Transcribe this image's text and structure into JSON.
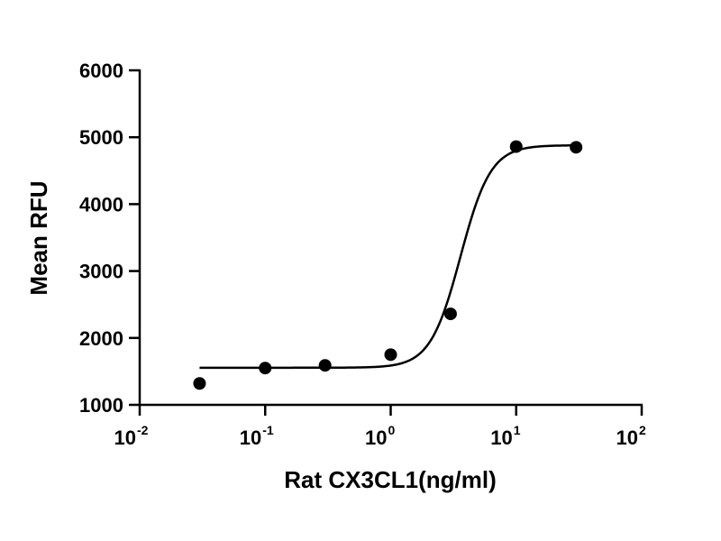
{
  "chart_data": {
    "type": "scatter",
    "xscale": "log",
    "xlabel": "Rat CX3CL1(ng/ml)",
    "ylabel": "Mean RFU",
    "xlim": [
      0.01,
      100
    ],
    "ylim": [
      1000,
      6000
    ],
    "x_ticks": [
      {
        "base": "10",
        "exp": "-2"
      },
      {
        "base": "10",
        "exp": "-1"
      },
      {
        "base": "10",
        "exp": "0"
      },
      {
        "base": "10",
        "exp": "1"
      },
      {
        "base": "10",
        "exp": "2"
      }
    ],
    "y_ticks": [
      "1000",
      "2000",
      "3000",
      "4000",
      "5000",
      "6000"
    ],
    "grid": false,
    "series": [
      {
        "x": [
          0.03,
          0.1,
          0.3,
          1,
          3,
          10,
          30
        ],
        "y": [
          1320,
          1550,
          1590,
          1750,
          2360,
          4860,
          4850
        ],
        "marker": "circle",
        "color": "#000000"
      }
    ],
    "fit_curve": {
      "model": "4PL",
      "bottom": 1555,
      "top": 4880,
      "ec50": 3.6,
      "hill": 3.6,
      "x_range": [
        0.03,
        30
      ],
      "color": "#000000"
    }
  }
}
